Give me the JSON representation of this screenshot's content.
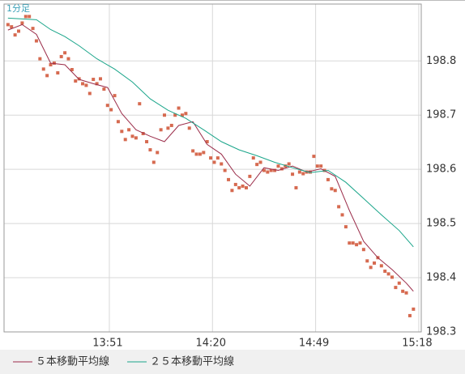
{
  "chart_data": {
    "type": "line",
    "title": "1分足",
    "ylim": [
      198.3,
      198.905
    ],
    "yticks": [
      198.3,
      198.4,
      198.5,
      198.6,
      198.7,
      198.8
    ],
    "xlim": [
      -1.1,
      116.2
    ],
    "xticks": [
      {
        "value": 28.5,
        "label": "13:51"
      },
      {
        "value": 57.5,
        "label": "14:20"
      },
      {
        "value": 86.5,
        "label": "14:49"
      },
      {
        "value": 115.5,
        "label": "15:18"
      }
    ],
    "grid": true,
    "series": [
      {
        "style": "points",
        "color": "#d66a50",
        "x": [
          0,
          1,
          2,
          3,
          4,
          5,
          6,
          7,
          8,
          9,
          10,
          11,
          12,
          13,
          14,
          15,
          16,
          17,
          18,
          19,
          20,
          21,
          22,
          23,
          24,
          25,
          26,
          27,
          28,
          29,
          30,
          31,
          32,
          33,
          34,
          35,
          36,
          37,
          38,
          39,
          40,
          41,
          42,
          43,
          44,
          45,
          46,
          47,
          48,
          49,
          50,
          51,
          52,
          53,
          54,
          55,
          56,
          57,
          58,
          59,
          60,
          61,
          62,
          63,
          64,
          65,
          66,
          67,
          68,
          69,
          70,
          71,
          72,
          73,
          74,
          75,
          76,
          77,
          78,
          79,
          80,
          81,
          82,
          83,
          84,
          85,
          86,
          87,
          88,
          89,
          90,
          91,
          92,
          93,
          94,
          95,
          96,
          97,
          98,
          99,
          100,
          101,
          102,
          103,
          104,
          105,
          106,
          107,
          108,
          109,
          110,
          111,
          112,
          113,
          114
        ],
        "values": [
          198.867,
          198.863,
          198.848,
          198.855,
          198.87,
          198.882,
          198.882,
          198.86,
          198.837,
          198.804,
          198.785,
          198.773,
          198.793,
          198.796,
          198.778,
          198.808,
          198.815,
          198.804,
          198.784,
          198.763,
          198.767,
          198.758,
          198.755,
          198.74,
          198.766,
          198.758,
          198.767,
          198.748,
          198.718,
          198.71,
          198.736,
          198.688,
          198.67,
          198.655,
          198.673,
          198.661,
          198.658,
          198.721,
          198.666,
          198.651,
          198.636,
          198.613,
          198.631,
          198.673,
          198.7,
          198.676,
          198.681,
          198.7,
          198.713,
          198.7,
          198.703,
          198.676,
          198.634,
          198.628,
          198.628,
          198.631,
          198.651,
          198.621,
          198.613,
          198.621,
          198.61,
          198.598,
          198.581,
          198.561,
          198.572,
          198.566,
          198.569,
          198.566,
          198.587,
          198.621,
          198.609,
          198.613,
          198.598,
          198.595,
          198.598,
          198.598,
          198.606,
          198.601,
          198.606,
          198.61,
          198.591,
          198.566,
          198.595,
          198.592,
          198.595,
          198.595,
          198.624,
          198.606,
          198.606,
          198.598,
          198.581,
          198.564,
          198.561,
          198.531,
          198.516,
          198.494,
          198.464,
          198.464,
          198.461,
          198.464,
          198.452,
          198.431,
          198.419,
          198.427,
          198.437,
          198.422,
          198.412,
          198.407,
          198.401,
          198.382,
          198.39,
          198.375,
          198.372,
          198.33,
          198.342
        ]
      },
      {
        "name": "５本移動平均線",
        "style": "line",
        "color": "#9b2d4a",
        "x": [
          0,
          4,
          8,
          12,
          16,
          20,
          24,
          28,
          32,
          36,
          40,
          44,
          48,
          52,
          56,
          60,
          64,
          68,
          72,
          76,
          80,
          84,
          88,
          92,
          96,
          100,
          104,
          108,
          112,
          114
        ],
        "values": [
          198.857,
          198.867,
          198.849,
          198.796,
          198.793,
          198.766,
          198.758,
          198.751,
          198.703,
          198.673,
          198.661,
          198.651,
          198.681,
          198.688,
          198.646,
          198.628,
          198.591,
          198.569,
          198.603,
          198.598,
          198.606,
          198.595,
          198.601,
          198.587,
          198.524,
          198.467,
          198.437,
          198.415,
          198.39,
          198.375
        ]
      },
      {
        "name": "２５本移動平均線",
        "style": "line",
        "color": "#1aa58a",
        "x": [
          0,
          8,
          12,
          16,
          20,
          25,
          30,
          35,
          40,
          45,
          50,
          55,
          60,
          65,
          70,
          75,
          80,
          85,
          90,
          95,
          100,
          105,
          110,
          114
        ],
        "values": [
          198.879,
          198.876,
          198.858,
          198.845,
          198.828,
          198.804,
          198.785,
          198.761,
          198.73,
          198.709,
          198.694,
          198.673,
          198.651,
          198.636,
          198.625,
          198.613,
          198.603,
          198.594,
          198.598,
          198.576,
          198.546,
          198.516,
          198.487,
          198.457
        ]
      }
    ]
  }
}
